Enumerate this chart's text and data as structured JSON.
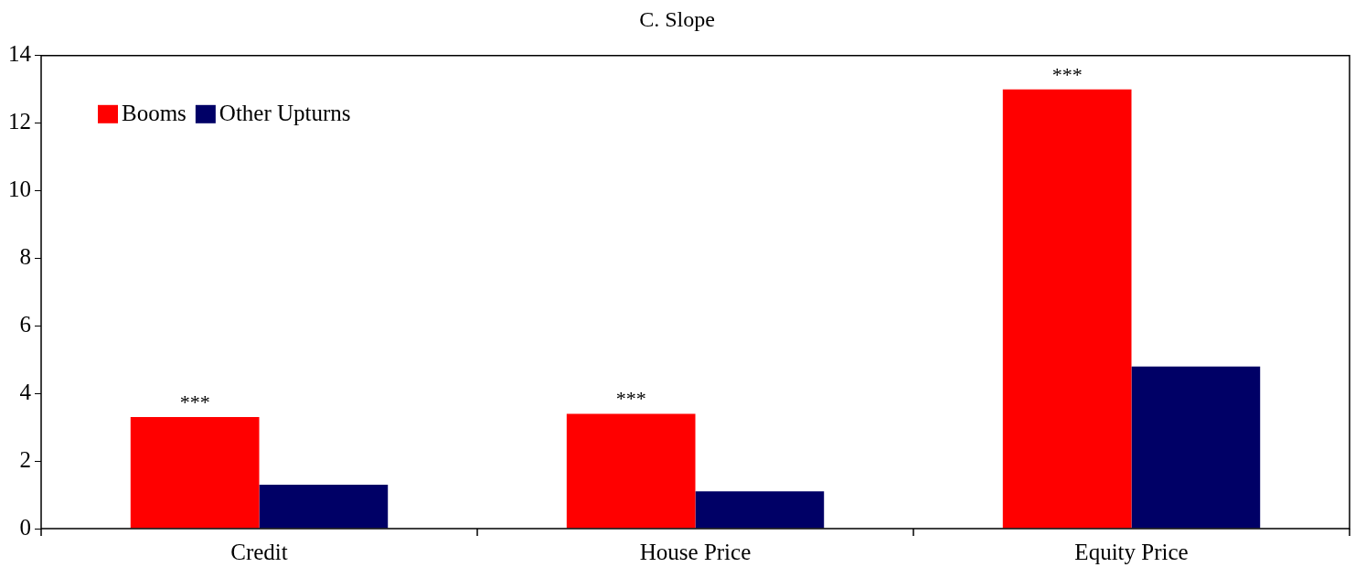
{
  "chart_data": {
    "type": "bar",
    "title": "C. Slope",
    "categories": [
      "Credit",
      "House Price",
      "Equity Price"
    ],
    "series": [
      {
        "name": "Booms",
        "color": "#ff0000",
        "values": [
          3.3,
          3.4,
          13.0
        ]
      },
      {
        "name": "Other Upturns",
        "color": "#000066",
        "values": [
          1.3,
          1.1,
          4.8
        ]
      }
    ],
    "ylim": [
      0,
      14
    ],
    "yticks": [
      0,
      2,
      4,
      6,
      8,
      10,
      12,
      14
    ],
    "grid": false,
    "legend": "top left",
    "annotations": [
      {
        "text": "***",
        "x": "Credit",
        "y": 3.3
      },
      {
        "text": "***",
        "x": "House Price",
        "y": 3.4
      },
      {
        "text": "***",
        "x": "Equity Price",
        "y": 13.0
      }
    ]
  }
}
